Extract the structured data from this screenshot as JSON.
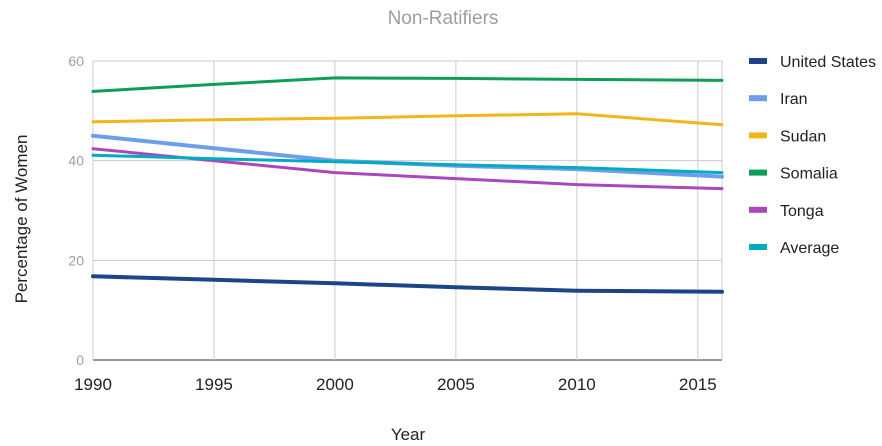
{
  "chart_data": {
    "type": "line",
    "title": "Non-Ratifiers",
    "xlabel": "Year",
    "ylabel": "Percentage of Women",
    "xlim": [
      1990,
      2016
    ],
    "ylim": [
      0,
      60
    ],
    "x_ticks": [
      "1990",
      "1995",
      "2000",
      "2005",
      "2010",
      "2015"
    ],
    "y_ticks": [
      "0",
      "20",
      "40",
      "60"
    ],
    "grid": true,
    "legend_position": "right",
    "x": [
      1990,
      1995,
      2000,
      2005,
      2010,
      2016
    ],
    "series": [
      {
        "name": "United States",
        "color": "#1c4587",
        "values": [
          16.8,
          16.1,
          15.4,
          14.6,
          13.9,
          13.7
        ]
      },
      {
        "name": "Iran",
        "color": "#6d9eeb",
        "values": [
          45.0,
          42.5,
          40.0,
          39.0,
          38.3,
          36.8
        ]
      },
      {
        "name": "Sudan",
        "color": "#f1b61a",
        "values": [
          47.8,
          48.2,
          48.5,
          49.0,
          49.4,
          47.2
        ]
      },
      {
        "name": "Somalia",
        "color": "#0f9d58",
        "values": [
          53.9,
          55.3,
          56.6,
          56.5,
          56.3,
          56.1
        ]
      },
      {
        "name": "Tonga",
        "color": "#ab47bc",
        "values": [
          42.4,
          40.0,
          37.6,
          36.4,
          35.2,
          34.4
        ]
      },
      {
        "name": "Average",
        "color": "#00acc1",
        "values": [
          41.1,
          40.4,
          39.8,
          39.2,
          38.6,
          37.6
        ]
      }
    ]
  }
}
